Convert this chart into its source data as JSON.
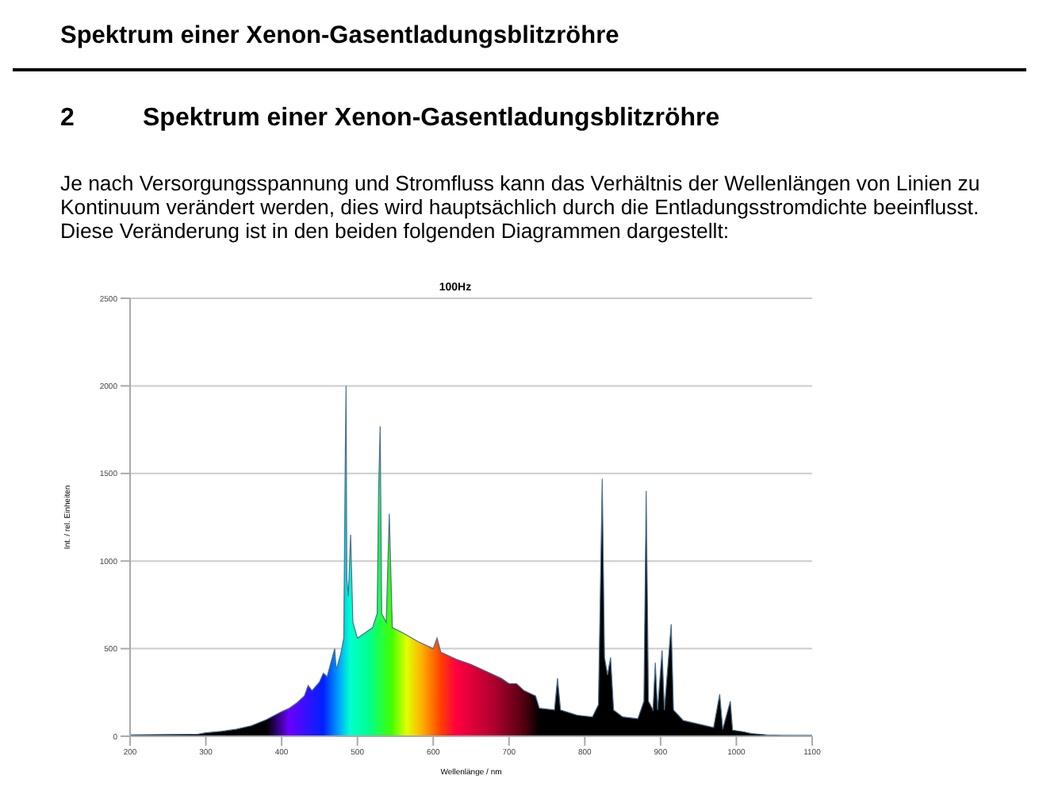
{
  "chart_data": {
    "type": "area",
    "title": "100Hz",
    "xlabel": "Wellenlänge / nm",
    "ylabel": "Int. / rel. Einheiten",
    "annotations": [
      "Spektrum einer Xenon-Gasentladungsblitzröhre",
      "2",
      "Spektrum einer Xenon-Gasentladungsblitzröhre",
      "Je nach Versorgungsspannung und Stromfluss kann das Verhältnis der Wellenlängen von Linien zu Kontinuum verändert werden, dies wird hauptsächlich durch die Entladungsstromdichte beeinflusst. Diese Veränderung ist in den beiden folgenden Diagrammen dargestellt:"
    ],
    "x": [
      200,
      250,
      290,
      300,
      320,
      340,
      360,
      380,
      400,
      410,
      420,
      430,
      435,
      440,
      450,
      455,
      460,
      465,
      470,
      472,
      478,
      482,
      484,
      485,
      486,
      488,
      491,
      494,
      500,
      510,
      520,
      526,
      528,
      530,
      532,
      538,
      542,
      546,
      560,
      580,
      600,
      605,
      610,
      630,
      650,
      670,
      690,
      700,
      710,
      720,
      735,
      740,
      760,
      764,
      768,
      790,
      810,
      818,
      823,
      826,
      830,
      834,
      838,
      850,
      870,
      878,
      881,
      884,
      890,
      893,
      896,
      902,
      905,
      914,
      917,
      930,
      950,
      970,
      978,
      982,
      992,
      995,
      1010,
      1020,
      1040,
      1060,
      1100
    ],
    "series": [
      {
        "color": "#4a6f8f",
        "values": [
          8,
          10,
          12,
          20,
          28,
          40,
          60,
          95,
          140,
          160,
          190,
          230,
          290,
          260,
          310,
          360,
          340,
          420,
          500,
          380,
          470,
          560,
          1620,
          2000,
          900,
          800,
          1150,
          650,
          560,
          590,
          620,
          700,
          1410,
          1770,
          700,
          650,
          1270,
          620,
          590,
          540,
          500,
          560,
          480,
          440,
          410,
          370,
          330,
          300,
          300,
          260,
          230,
          160,
          150,
          330,
          150,
          120,
          110,
          180,
          1470,
          450,
          350,
          450,
          150,
          110,
          100,
          200,
          1400,
          200,
          150,
          420,
          150,
          490,
          150,
          640,
          150,
          90,
          70,
          50,
          240,
          40,
          200,
          35,
          25,
          15,
          8,
          5,
          5
        ]
      }
    ],
    "xlim": [
      200,
      1100
    ],
    "xticks": [
      200,
      300,
      400,
      500,
      600,
      700,
      800,
      900,
      1000,
      1100
    ],
    "ylim": [
      0,
      2500
    ],
    "yticks": [
      0,
      500,
      1000,
      1500,
      2000,
      2500
    ],
    "grid": "y",
    "legend": false
  }
}
